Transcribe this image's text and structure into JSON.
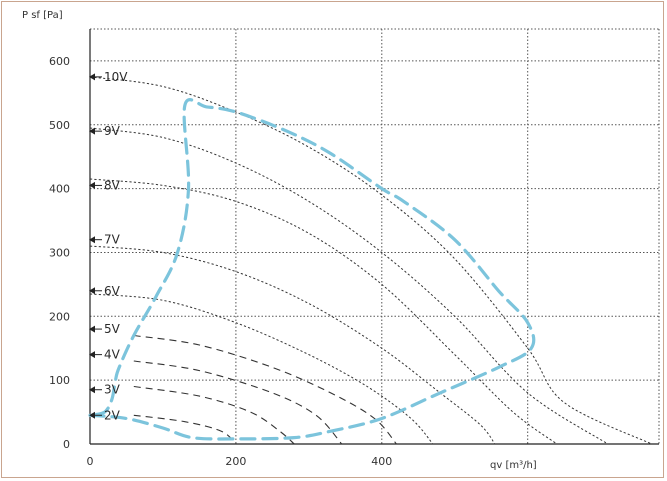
{
  "chart_data": {
    "type": "line",
    "title": "",
    "ylabel": "P sf [Pa]",
    "xlabel": "qv [m³/h]",
    "xlim": [
      0,
      780
    ],
    "ylim": [
      0,
      650
    ],
    "xticks": [
      0,
      200,
      400
    ],
    "yticks": [
      0,
      100,
      200,
      300,
      400,
      500,
      600
    ],
    "grid": true,
    "colors": {
      "curve": "#333333",
      "envelope": "#7cc4dc",
      "grid": "#555555",
      "frame": "#c9a58f"
    },
    "series": [
      {
        "name": "10V",
        "label_y": 575,
        "points": [
          [
            0,
            575
          ],
          [
            100,
            560
          ],
          [
            200,
            520
          ],
          [
            300,
            465
          ],
          [
            400,
            390
          ],
          [
            500,
            290
          ],
          [
            600,
            150
          ],
          [
            650,
            65
          ],
          [
            770,
            0
          ]
        ]
      },
      {
        "name": "9V",
        "label_y": 490,
        "points": [
          [
            0,
            495
          ],
          [
            100,
            480
          ],
          [
            200,
            440
          ],
          [
            300,
            380
          ],
          [
            400,
            300
          ],
          [
            500,
            200
          ],
          [
            600,
            80
          ],
          [
            710,
            0
          ]
        ]
      },
      {
        "name": "8V",
        "label_y": 405,
        "points": [
          [
            0,
            415
          ],
          [
            100,
            405
          ],
          [
            200,
            380
          ],
          [
            300,
            330
          ],
          [
            400,
            250
          ],
          [
            500,
            140
          ],
          [
            580,
            50
          ],
          [
            640,
            0
          ]
        ]
      },
      {
        "name": "7V",
        "label_y": 320,
        "points": [
          [
            0,
            310
          ],
          [
            100,
            300
          ],
          [
            200,
            270
          ],
          [
            300,
            220
          ],
          [
            400,
            150
          ],
          [
            480,
            80
          ],
          [
            535,
            30
          ],
          [
            555,
            0
          ]
        ]
      },
      {
        "name": "6V",
        "label_y": 240,
        "points": [
          [
            0,
            235
          ],
          [
            100,
            225
          ],
          [
            200,
            190
          ],
          [
            300,
            140
          ],
          [
            380,
            90
          ],
          [
            440,
            40
          ],
          [
            470,
            0
          ]
        ]
      },
      {
        "name": "5V",
        "label_y": 180,
        "points": [
          [
            60,
            170
          ],
          [
            150,
            155
          ],
          [
            250,
            120
          ],
          [
            330,
            80
          ],
          [
            390,
            40
          ],
          [
            420,
            0
          ]
        ]
      },
      {
        "name": "4V",
        "label_y": 140,
        "points": [
          [
            60,
            130
          ],
          [
            150,
            115
          ],
          [
            250,
            80
          ],
          [
            310,
            45
          ],
          [
            345,
            0
          ]
        ]
      },
      {
        "name": "3V",
        "label_y": 85,
        "points": [
          [
            60,
            90
          ],
          [
            150,
            75
          ],
          [
            220,
            50
          ],
          [
            260,
            20
          ],
          [
            280,
            0
          ]
        ]
      },
      {
        "name": "2V",
        "label_y": 45,
        "points": [
          [
            60,
            45
          ],
          [
            130,
            35
          ],
          [
            180,
            20
          ],
          [
            200,
            0
          ]
        ]
      }
    ],
    "envelope": [
      [
        0,
        45
      ],
      [
        50,
        40
      ],
      [
        100,
        25
      ],
      [
        140,
        10
      ],
      [
        200,
        8
      ],
      [
        280,
        10
      ],
      [
        330,
        20
      ],
      [
        400,
        40
      ],
      [
        480,
        80
      ],
      [
        560,
        120
      ],
      [
        605,
        150
      ],
      [
        600,
        190
      ],
      [
        560,
        240
      ],
      [
        500,
        320
      ],
      [
        430,
        380
      ],
      [
        400,
        400
      ],
      [
        330,
        455
      ],
      [
        270,
        490
      ],
      [
        200,
        520
      ],
      [
        160,
        528
      ],
      [
        130,
        530
      ],
      [
        135,
        400
      ],
      [
        120,
        300
      ],
      [
        90,
        230
      ],
      [
        60,
        170
      ],
      [
        40,
        120
      ],
      [
        35,
        100
      ],
      [
        30,
        70
      ],
      [
        20,
        50
      ],
      [
        0,
        45
      ]
    ]
  }
}
